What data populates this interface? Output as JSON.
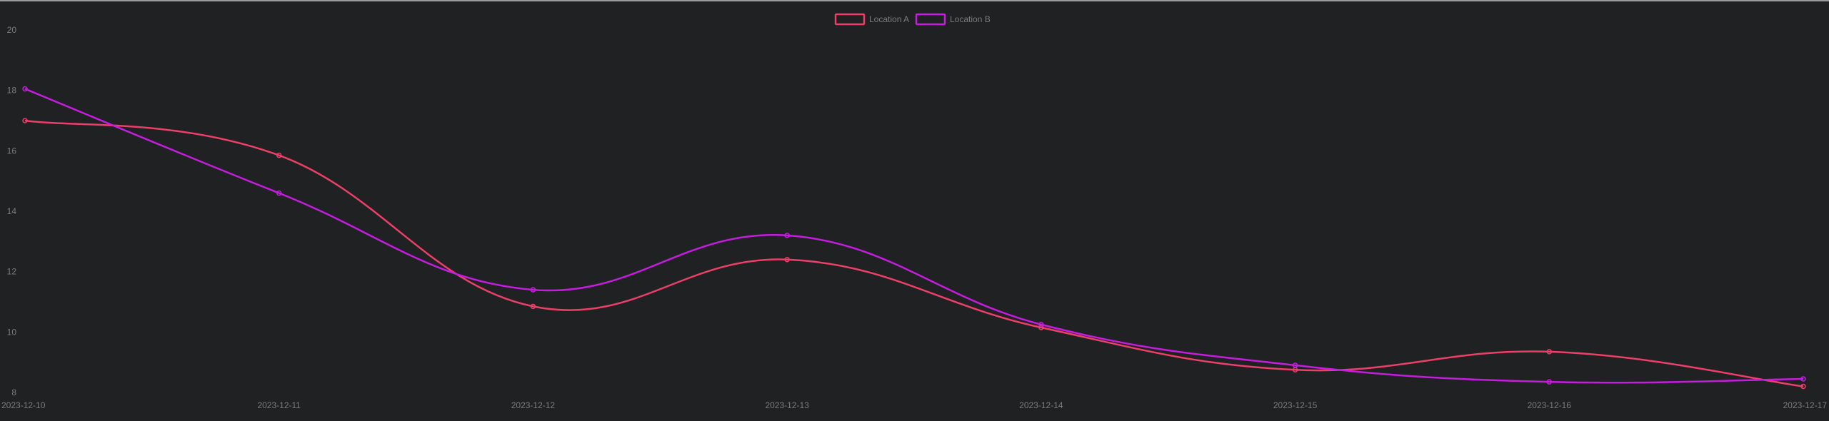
{
  "chart_data": {
    "type": "line",
    "x": [
      "2023-12-10",
      "2023-12-11",
      "2023-12-12",
      "2023-12-13",
      "2023-12-14",
      "2023-12-15",
      "2023-12-16",
      "2023-12-17"
    ],
    "series": [
      {
        "name": "Location A",
        "color": "#ec3f69",
        "values": [
          17.0,
          15.85,
          10.85,
          12.4,
          10.15,
          8.75,
          9.35,
          8.2
        ]
      },
      {
        "name": "Location B",
        "color": "#c51dde",
        "values": [
          18.05,
          14.6,
          11.4,
          13.2,
          10.25,
          8.9,
          8.35,
          8.45
        ]
      }
    ],
    "yticks": [
      8,
      10,
      12,
      14,
      16,
      18,
      20
    ],
    "ylim": [
      8,
      20
    ],
    "legend_position": "top-center",
    "grid": false,
    "title": "",
    "xlabel": "",
    "ylabel": ""
  }
}
